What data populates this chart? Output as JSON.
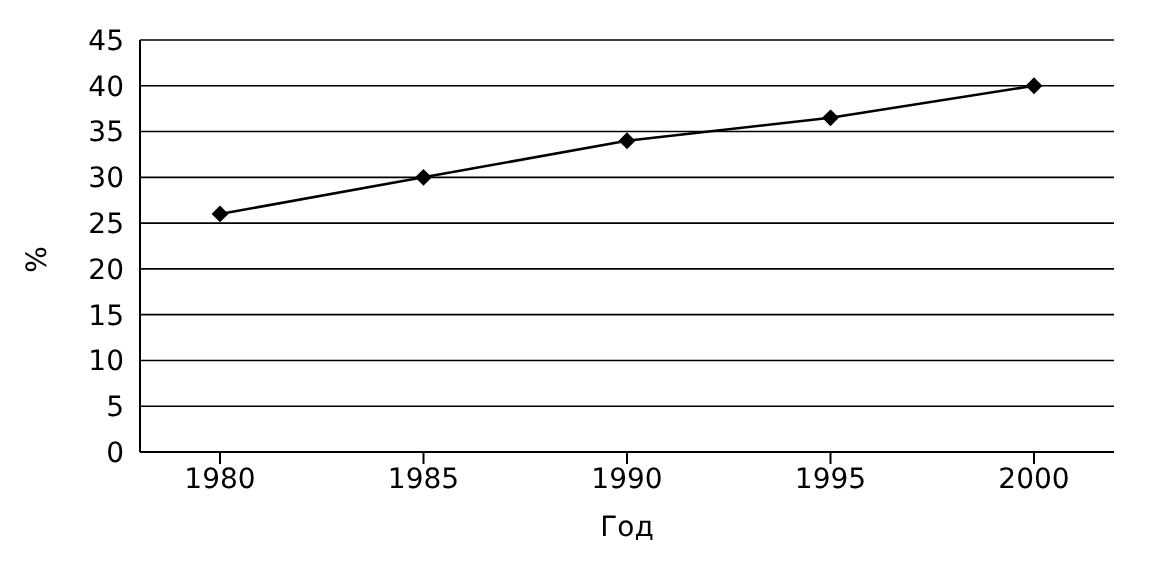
{
  "chart_data": {
    "type": "line",
    "xlabel": "Год",
    "ylabel": "%",
    "categories": [
      "1980",
      "1985",
      "1990",
      "1995",
      "2000"
    ],
    "series": [
      {
        "color": "#000000",
        "values": [
          26,
          30,
          34,
          36.5,
          40
        ]
      }
    ],
    "ylim": [
      0,
      45
    ],
    "yticks": [
      0,
      5,
      10,
      15,
      20,
      25,
      30,
      35,
      40,
      45
    ],
    "grid": "y",
    "marker": "diamond",
    "line_style": "solid"
  }
}
